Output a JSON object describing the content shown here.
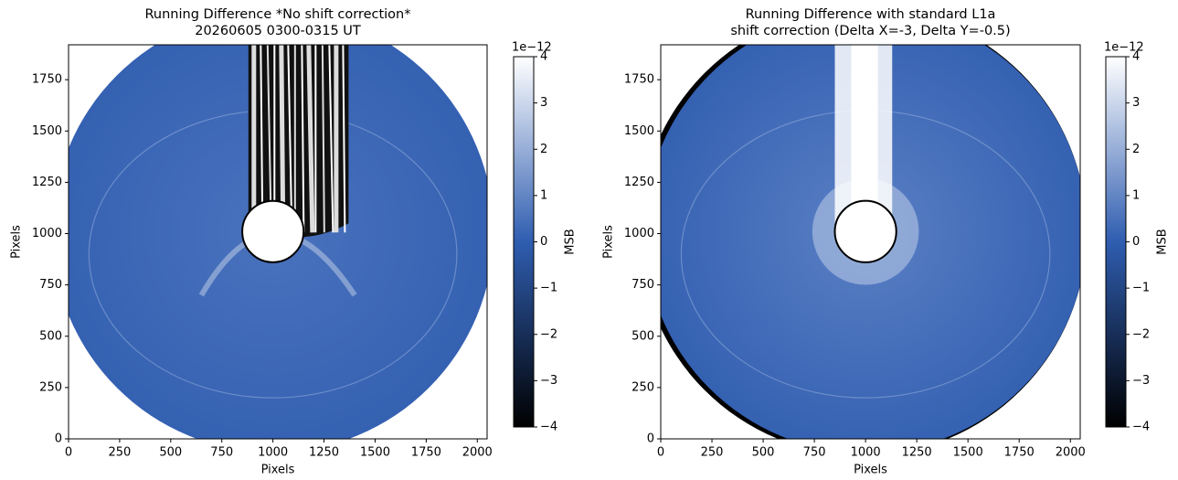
{
  "chart_data": [
    {
      "type": "image",
      "title": [
        "Running Difference *No shift correction*",
        "20260605 0300-0315 UT"
      ],
      "xlabel": "Pixels",
      "ylabel": "Pixels",
      "xlim": [
        0,
        2048
      ],
      "ylim": [
        0,
        1920
      ],
      "xticks": [
        0,
        250,
        500,
        750,
        1000,
        1250,
        1500,
        1750,
        2000
      ],
      "yticks": [
        0,
        250,
        500,
        750,
        1000,
        1250,
        1500,
        1750
      ],
      "colorbar": {
        "label": "MSB",
        "offset_label": "1e−12",
        "lim": [
          -4,
          4
        ],
        "colors": [
          "#000000",
          "#2f5db0",
          "#ffffff"
        ],
        "ticks": [
          {
            "value": -4,
            "label": "−4"
          },
          {
            "value": -3,
            "label": "−3"
          },
          {
            "value": -2,
            "label": "−2"
          },
          {
            "value": -1,
            "label": "−1"
          },
          0,
          1,
          2,
          3,
          4
        ]
      }
    },
    {
      "type": "image",
      "title": [
        "Running Difference with standard L1a",
        "shift correction (Delta X=-3, Delta Y=-0.5)"
      ],
      "xlabel": "Pixels",
      "ylabel": "Pixels",
      "xlim": [
        0,
        2048
      ],
      "ylim": [
        0,
        1920
      ],
      "xticks": [
        0,
        250,
        500,
        750,
        1000,
        1250,
        1500,
        1750,
        2000
      ],
      "yticks": [
        0,
        250,
        500,
        750,
        1000,
        1250,
        1500,
        1750
      ],
      "colorbar": {
        "label": "MSB",
        "offset_label": "1e−12",
        "lim": [
          -4,
          4
        ],
        "colors": [
          "#000000",
          "#2f5db0",
          "#ffffff"
        ],
        "ticks": [
          {
            "value": -4,
            "label": "−4"
          },
          {
            "value": -3,
            "label": "−3"
          },
          {
            "value": -2,
            "label": "−2"
          },
          {
            "value": -1,
            "label": "−1"
          },
          0,
          1,
          2,
          3,
          4
        ]
      }
    }
  ]
}
